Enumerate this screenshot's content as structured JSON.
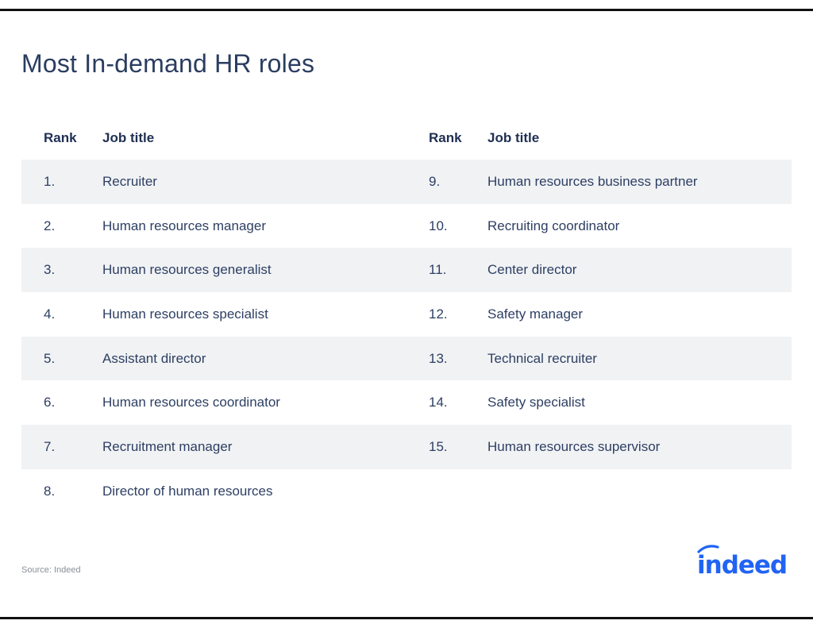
{
  "page": {
    "title": "Most In-demand HR roles",
    "source": "Source: Indeed",
    "logo_text": "indeed",
    "brand_color": "#2164f3"
  },
  "table": {
    "headers": {
      "rank": "Rank",
      "job_title": "Job title"
    },
    "left": [
      {
        "rank": "1.",
        "title": "Recruiter"
      },
      {
        "rank": "2.",
        "title": "Human resources manager"
      },
      {
        "rank": "3.",
        "title": "Human resources generalist"
      },
      {
        "rank": "4.",
        "title": "Human resources specialist"
      },
      {
        "rank": "5.",
        "title": "Assistant director"
      },
      {
        "rank": "6.",
        "title": "Human resources coordinator"
      },
      {
        "rank": "7.",
        "title": "Recruitment manager"
      },
      {
        "rank": "8.",
        "title": "Director of human resources"
      }
    ],
    "right": [
      {
        "rank": "9.",
        "title": "Human resources business partner"
      },
      {
        "rank": "10.",
        "title": "Recruiting coordinator"
      },
      {
        "rank": "11.",
        "title": "Center director"
      },
      {
        "rank": "12.",
        "title": "Safety manager"
      },
      {
        "rank": "13.",
        "title": "Technical recruiter"
      },
      {
        "rank": "14.",
        "title": "Safety specialist"
      },
      {
        "rank": "15.",
        "title": "Human resources supervisor"
      }
    ]
  }
}
